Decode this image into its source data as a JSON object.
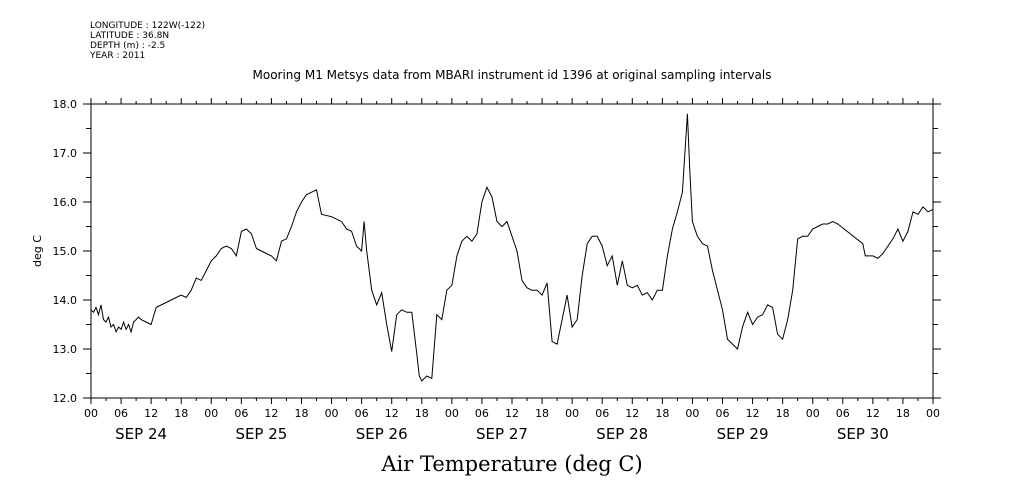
{
  "meta": {
    "longitude": "LONGITUDE : 122W(-122)",
    "latitude": "LATITUDE : 36.8N",
    "depth": "DEPTH (m) : -2.5",
    "year": "YEAR : 2011"
  },
  "chart_data": {
    "type": "line",
    "title": "Mooring M1 Metsys data from MBARI instrument id 1396 at original sampling intervals",
    "xlabel": "Air Temperature (deg C)",
    "ylabel": "deg C",
    "ylim": [
      12.0,
      18.0
    ],
    "y_ticks": [
      "12.0",
      "13.0",
      "14.0",
      "15.0",
      "16.0",
      "17.0",
      "18.0"
    ],
    "x_unit": "hours since SEP 24 00",
    "xlim": [
      0,
      168
    ],
    "hour_tick_labels": [
      "00",
      "06",
      "12",
      "18",
      "00",
      "06",
      "12",
      "18",
      "00",
      "06",
      "12",
      "18",
      "00",
      "06",
      "12",
      "18",
      "00",
      "06",
      "12",
      "18",
      "00",
      "06",
      "12",
      "18",
      "00",
      "06",
      "12",
      "18",
      "00"
    ],
    "day_labels": [
      "SEP 24",
      "SEP 25",
      "SEP 26",
      "SEP 27",
      "SEP 28",
      "SEP 29",
      "SEP 30"
    ],
    "grid": false,
    "series": [
      {
        "color": "#000000",
        "points": [
          [
            0,
            13.8
          ],
          [
            0.5,
            13.75
          ],
          [
            1,
            13.85
          ],
          [
            1.5,
            13.7
          ],
          [
            2,
            13.9
          ],
          [
            2.5,
            13.6
          ],
          [
            3,
            13.55
          ],
          [
            3.5,
            13.65
          ],
          [
            4,
            13.45
          ],
          [
            4.5,
            13.5
          ],
          [
            5,
            13.35
          ],
          [
            5.5,
            13.45
          ],
          [
            6,
            13.4
          ],
          [
            6.5,
            13.55
          ],
          [
            7,
            13.4
          ],
          [
            7.5,
            13.5
          ],
          [
            8,
            13.35
          ],
          [
            8.5,
            13.55
          ],
          [
            9,
            13.6
          ],
          [
            9.5,
            13.65
          ],
          [
            10,
            13.6
          ],
          [
            11,
            13.55
          ],
          [
            12,
            13.5
          ],
          [
            13,
            13.85
          ],
          [
            15,
            13.95
          ],
          [
            17,
            14.05
          ],
          [
            18,
            14.1
          ],
          [
            19,
            14.05
          ],
          [
            20,
            14.2
          ],
          [
            21,
            14.45
          ],
          [
            22,
            14.4
          ],
          [
            23,
            14.6
          ],
          [
            24,
            14.8
          ],
          [
            25,
            14.9
          ],
          [
            26,
            15.05
          ],
          [
            27,
            15.1
          ],
          [
            28,
            15.05
          ],
          [
            29,
            14.9
          ],
          [
            30,
            15.4
          ],
          [
            31,
            15.45
          ],
          [
            32,
            15.35
          ],
          [
            33,
            15.05
          ],
          [
            34,
            15.0
          ],
          [
            35,
            14.95
          ],
          [
            36,
            14.9
          ],
          [
            37,
            14.8
          ],
          [
            38,
            15.2
          ],
          [
            39,
            15.25
          ],
          [
            40,
            15.5
          ],
          [
            41,
            15.8
          ],
          [
            42,
            16.0
          ],
          [
            43,
            16.15
          ],
          [
            45,
            16.25
          ],
          [
            46,
            15.75
          ],
          [
            48,
            15.7
          ],
          [
            50,
            15.6
          ],
          [
            51,
            15.45
          ],
          [
            52,
            15.4
          ],
          [
            53,
            15.1
          ],
          [
            54,
            15.0
          ],
          [
            54.5,
            15.6
          ],
          [
            55,
            15.0
          ],
          [
            56,
            14.2
          ],
          [
            57,
            13.9
          ],
          [
            58,
            14.15
          ],
          [
            59,
            13.5
          ],
          [
            60,
            12.95
          ],
          [
            61,
            13.7
          ],
          [
            62,
            13.8
          ],
          [
            63,
            13.75
          ],
          [
            64,
            13.75
          ],
          [
            65,
            12.9
          ],
          [
            65.5,
            12.45
          ],
          [
            66,
            12.35
          ],
          [
            67,
            12.45
          ],
          [
            68,
            12.4
          ],
          [
            69,
            13.7
          ],
          [
            70,
            13.6
          ],
          [
            71,
            14.2
          ],
          [
            72,
            14.3
          ],
          [
            73,
            14.9
          ],
          [
            74,
            15.2
          ],
          [
            75,
            15.3
          ],
          [
            76,
            15.2
          ],
          [
            77,
            15.35
          ],
          [
            78,
            16.0
          ],
          [
            79,
            16.3
          ],
          [
            80,
            16.1
          ],
          [
            81,
            15.6
          ],
          [
            82,
            15.5
          ],
          [
            83,
            15.6
          ],
          [
            84,
            15.3
          ],
          [
            85,
            15.0
          ],
          [
            86,
            14.4
          ],
          [
            87,
            14.25
          ],
          [
            88,
            14.2
          ],
          [
            89,
            14.2
          ],
          [
            90,
            14.1
          ],
          [
            91,
            14.35
          ],
          [
            92,
            13.15
          ],
          [
            93,
            13.1
          ],
          [
            94,
            13.6
          ],
          [
            95,
            14.1
          ],
          [
            96,
            13.45
          ],
          [
            97,
            13.6
          ],
          [
            98,
            14.5
          ],
          [
            99,
            15.15
          ],
          [
            100,
            15.3
          ],
          [
            101,
            15.3
          ],
          [
            102,
            15.1
          ],
          [
            103,
            14.7
          ],
          [
            104,
            14.9
          ],
          [
            105,
            14.3
          ],
          [
            106,
            14.8
          ],
          [
            107,
            14.3
          ],
          [
            108,
            14.25
          ],
          [
            109,
            14.3
          ],
          [
            110,
            14.1
          ],
          [
            111,
            14.15
          ],
          [
            112,
            14.0
          ],
          [
            113,
            14.2
          ],
          [
            114,
            14.2
          ],
          [
            115,
            14.9
          ],
          [
            116,
            15.45
          ],
          [
            117,
            15.8
          ],
          [
            118,
            16.2
          ],
          [
            118.5,
            17.0
          ],
          [
            119,
            17.8
          ],
          [
            119.5,
            16.6
          ],
          [
            120,
            15.6
          ],
          [
            121,
            15.3
          ],
          [
            122,
            15.15
          ],
          [
            123,
            15.1
          ],
          [
            124,
            14.6
          ],
          [
            125,
            14.2
          ],
          [
            126,
            13.8
          ],
          [
            127,
            13.2
          ],
          [
            128,
            13.1
          ],
          [
            129,
            13.0
          ],
          [
            130,
            13.45
          ],
          [
            131,
            13.75
          ],
          [
            132,
            13.5
          ],
          [
            133,
            13.65
          ],
          [
            134,
            13.7
          ],
          [
            135,
            13.9
          ],
          [
            136,
            13.85
          ],
          [
            137,
            13.3
          ],
          [
            138,
            13.2
          ],
          [
            139,
            13.6
          ],
          [
            140,
            14.2
          ],
          [
            141,
            15.25
          ],
          [
            142,
            15.3
          ],
          [
            143,
            15.3
          ],
          [
            144,
            15.45
          ],
          [
            145,
            15.5
          ],
          [
            146,
            15.55
          ],
          [
            147,
            15.55
          ],
          [
            148,
            15.6
          ],
          [
            149,
            15.55
          ],
          [
            154,
            15.15
          ],
          [
            154.5,
            14.9
          ],
          [
            156,
            14.9
          ],
          [
            157,
            14.85
          ],
          [
            158,
            14.95
          ],
          [
            159,
            15.1
          ],
          [
            160,
            15.25
          ],
          [
            161,
            15.45
          ],
          [
            162,
            15.2
          ],
          [
            163,
            15.4
          ],
          [
            164,
            15.8
          ],
          [
            165,
            15.75
          ],
          [
            166,
            15.9
          ],
          [
            167,
            15.8
          ],
          [
            168,
            15.85
          ]
        ]
      }
    ]
  }
}
